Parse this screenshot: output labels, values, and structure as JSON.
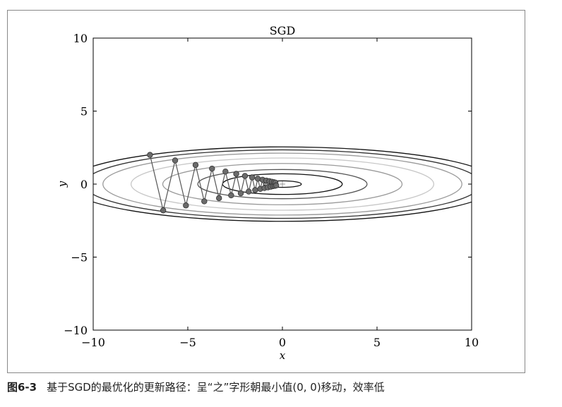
{
  "caption": {
    "figure_number": "图6-3",
    "text": "基于SGD的最优化的更新路径：呈“之”字形朝最小值(0, 0)移动，效率低"
  },
  "chart_data": {
    "type": "line",
    "title": "SGD",
    "xlabel": "x",
    "ylabel": "y",
    "xlim": [
      -10,
      10
    ],
    "ylim": [
      -10,
      10
    ],
    "xticks": [
      "−10",
      "−5",
      "0",
      "5",
      "10"
    ],
    "yticks": [
      "−10",
      "−5",
      "0",
      "5",
      "10"
    ],
    "xtick_values": [
      -10,
      -5,
      0,
      5,
      10
    ],
    "ytick_values": [
      -10,
      -5,
      0,
      5,
      10
    ],
    "grid": false,
    "function": "f(x, y) = x^2 / 20 + y^2",
    "contour_levels": [
      0.05,
      0.5,
      1.0,
      2.0,
      3.2,
      4.5,
      5.5,
      6.5
    ],
    "contour_colors": [
      "#111111",
      "#111111",
      "#555555",
      "#9a9a9a",
      "#c8c8c8",
      "#9a9a9a",
      "#333333",
      "#111111"
    ],
    "path_color": "#555555",
    "marker_color": "#6b6b6b",
    "minimum_marker": "+",
    "minimum_point": {
      "x": 0,
      "y": 0
    },
    "series": [
      {
        "marker": "o",
        "x": [
          -7.0,
          -6.3,
          -5.67,
          -5.1,
          -4.59,
          -4.13,
          -3.72,
          -3.35,
          -3.01,
          -2.71,
          -2.44,
          -2.2,
          -1.98,
          -1.78,
          -1.6,
          -1.44,
          -1.3,
          -1.17,
          -1.05,
          -0.95,
          -0.85,
          -0.77,
          -0.69,
          -0.62,
          -0.56,
          -0.5,
          -0.45,
          -0.41,
          -0.37,
          -0.33
        ],
        "y": [
          2.0,
          -1.8,
          1.62,
          -1.46,
          1.31,
          -1.18,
          1.06,
          -0.96,
          0.86,
          -0.77,
          0.7,
          -0.63,
          0.56,
          -0.51,
          0.46,
          -0.41,
          0.37,
          -0.33,
          0.3,
          -0.27,
          0.24,
          -0.22,
          0.2,
          -0.18,
          0.16,
          -0.14,
          0.13,
          -0.12,
          0.1,
          -0.09
        ]
      }
    ]
  }
}
